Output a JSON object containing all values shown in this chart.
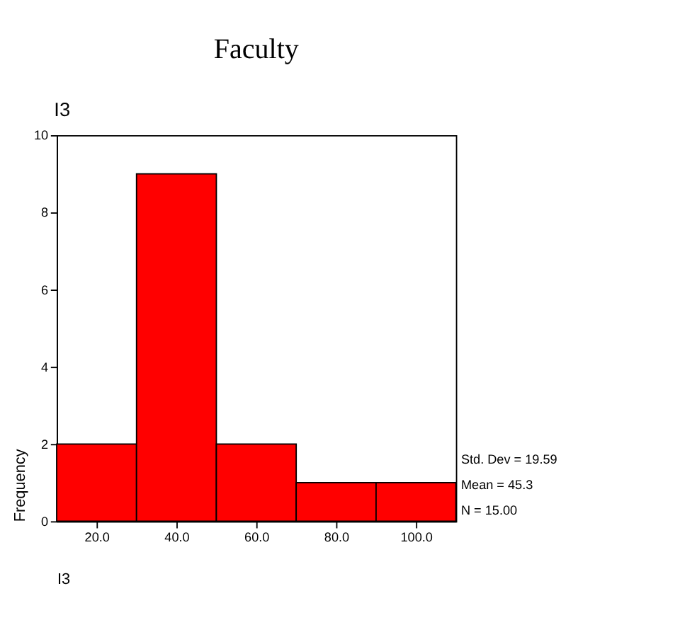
{
  "chart_data": {
    "type": "histogram",
    "title": "Faculty",
    "subtitle": "I3",
    "xlabel": "I3",
    "ylabel": "Frequency",
    "bins": [
      10,
      30,
      50,
      70,
      90,
      110
    ],
    "values": [
      2,
      9,
      2,
      1,
      1
    ],
    "color": "#ff0000",
    "xlim": [
      10,
      110
    ],
    "xticks": [
      {
        "value": 20,
        "label": "20.0"
      },
      {
        "value": 40,
        "label": "40.0"
      },
      {
        "value": 60,
        "label": "60.0"
      },
      {
        "value": 80,
        "label": "80.0"
      },
      {
        "value": 100,
        "label": "100.0"
      }
    ],
    "ylim": [
      0,
      10
    ],
    "yticks": [
      0,
      2,
      4,
      6,
      8,
      10
    ],
    "grid": false,
    "annotations": [
      "Std. Dev = 19.59",
      "Mean = 45.3",
      "N = 15.00"
    ]
  }
}
